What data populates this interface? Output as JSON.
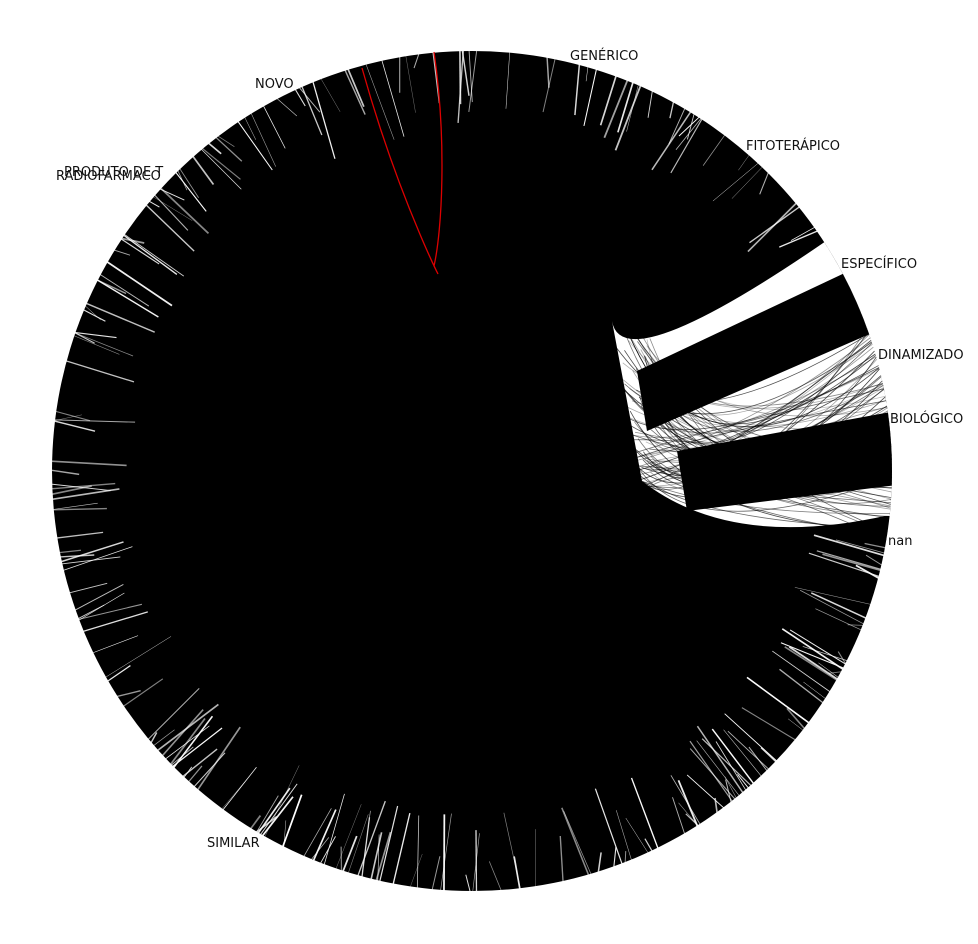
{
  "chart_data": {
    "type": "chord",
    "categories": [
      "GENÉRICO",
      "FITOTERÁPICO",
      "ESPECÍFICO",
      "DINAMIZADO",
      "BIOLÓGICO",
      "nan",
      "SIMILAR",
      "RADIOFARMACO",
      "PRODUTO DE T",
      "NOVO"
    ],
    "colors": {
      "background": "#ffffff",
      "chords": "#000000",
      "highlight_chord": "#dd0000"
    }
  }
}
